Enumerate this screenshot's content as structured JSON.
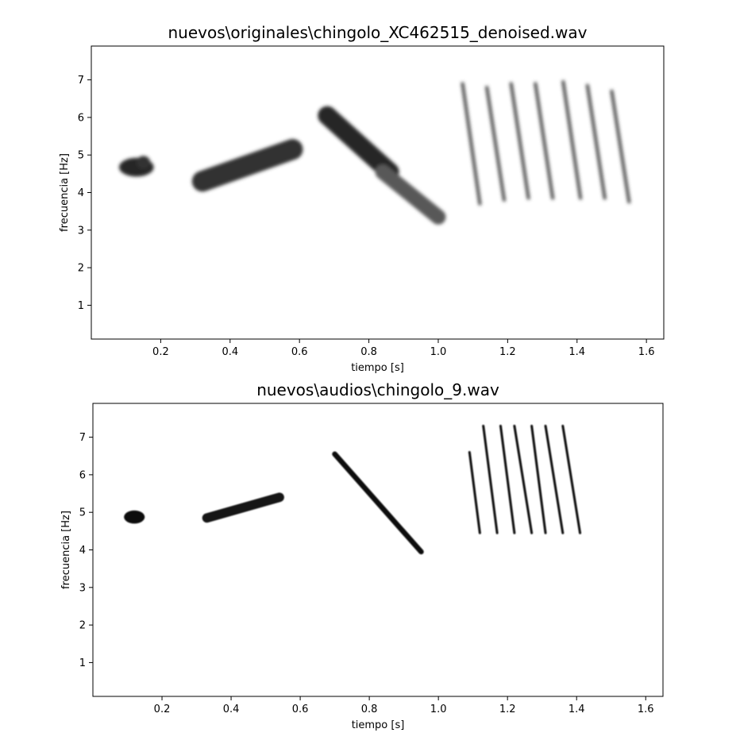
{
  "chart_data": [
    {
      "type": "heatmap",
      "subtype": "spectrogram",
      "title": "nuevos\\originales\\chingolo_XC462515_denoised.wav",
      "xlabel": "tiempo [s]",
      "ylabel": "frecuencia [Hz]",
      "xlim": [
        0.0,
        1.65
      ],
      "ylim": [
        0.1,
        7.9
      ],
      "x_ticks": [
        "0.2",
        "0.4",
        "0.6",
        "0.8",
        "1.0",
        "1.2",
        "1.4",
        "1.6"
      ],
      "y_ticks": [
        "1",
        "2",
        "3",
        "4",
        "5",
        "6",
        "7"
      ],
      "colormap": "gray_r",
      "grid": false,
      "elements": [
        {
          "kind": "blob",
          "t0": 0.08,
          "t1": 0.18,
          "f0": 4.65,
          "f1": 4.7,
          "thickness": 0.5,
          "intensity": 0.85
        },
        {
          "kind": "blob",
          "t0": 0.13,
          "t1": 0.17,
          "f0": 4.85,
          "f1": 4.75,
          "thickness": 0.35,
          "intensity": 0.8
        },
        {
          "kind": "sweep",
          "t0": 0.32,
          "t1": 0.58,
          "f0": 4.3,
          "f1": 5.15,
          "thickness": 0.55,
          "intensity": 0.8
        },
        {
          "kind": "sweep",
          "t0": 0.68,
          "t1": 0.86,
          "f0": 6.05,
          "f1": 4.55,
          "thickness": 0.5,
          "intensity": 0.85
        },
        {
          "kind": "sweep",
          "t0": 0.84,
          "t1": 1.0,
          "f0": 4.55,
          "f1": 3.35,
          "thickness": 0.4,
          "intensity": 0.65
        },
        {
          "kind": "note",
          "t0": 1.07,
          "t1": 1.12,
          "f0": 6.9,
          "f1": 3.7,
          "thickness": 0.08,
          "intensity": 0.75
        },
        {
          "kind": "note",
          "t0": 1.14,
          "t1": 1.19,
          "f0": 6.8,
          "f1": 3.8,
          "thickness": 0.08,
          "intensity": 0.75
        },
        {
          "kind": "note",
          "t0": 1.21,
          "t1": 1.26,
          "f0": 6.9,
          "f1": 3.85,
          "thickness": 0.08,
          "intensity": 0.75
        },
        {
          "kind": "note",
          "t0": 1.28,
          "t1": 1.33,
          "f0": 6.9,
          "f1": 3.85,
          "thickness": 0.08,
          "intensity": 0.75
        },
        {
          "kind": "note",
          "t0": 1.36,
          "t1": 1.41,
          "f0": 6.95,
          "f1": 3.85,
          "thickness": 0.08,
          "intensity": 0.75
        },
        {
          "kind": "note",
          "t0": 1.43,
          "t1": 1.48,
          "f0": 6.85,
          "f1": 3.85,
          "thickness": 0.08,
          "intensity": 0.75
        },
        {
          "kind": "note",
          "t0": 1.5,
          "t1": 1.55,
          "f0": 6.7,
          "f1": 3.75,
          "thickness": 0.08,
          "intensity": 0.75
        }
      ]
    },
    {
      "type": "heatmap",
      "subtype": "spectrogram",
      "title": "nuevos\\audios\\chingolo_9.wav",
      "xlabel": "tiempo [s]",
      "ylabel": "frecuencia [Hz]",
      "xlim": [
        0.0,
        1.65
      ],
      "ylim": [
        0.1,
        7.9
      ],
      "x_ticks": [
        "0.2",
        "0.4",
        "0.6",
        "0.8",
        "1.0",
        "1.2",
        "1.4",
        "1.6"
      ],
      "y_ticks": [
        "1",
        "2",
        "3",
        "4",
        "5",
        "6",
        "7"
      ],
      "colormap": "gray_r",
      "grid": false,
      "elements": [
        {
          "kind": "blob",
          "t0": 0.09,
          "t1": 0.15,
          "f0": 4.85,
          "f1": 4.9,
          "thickness": 0.35,
          "intensity": 0.95
        },
        {
          "kind": "sweep",
          "t0": 0.33,
          "t1": 0.54,
          "f0": 4.85,
          "f1": 5.4,
          "thickness": 0.25,
          "intensity": 0.9
        },
        {
          "kind": "sweep",
          "t0": 0.7,
          "t1": 0.95,
          "f0": 6.55,
          "f1": 3.95,
          "thickness": 0.14,
          "intensity": 0.95
        },
        {
          "kind": "note",
          "t0": 1.09,
          "t1": 1.12,
          "f0": 6.6,
          "f1": 4.45,
          "thickness": 0.05,
          "intensity": 0.95
        },
        {
          "kind": "note",
          "t0": 1.13,
          "t1": 1.17,
          "f0": 7.3,
          "f1": 4.45,
          "thickness": 0.05,
          "intensity": 0.95
        },
        {
          "kind": "note",
          "t0": 1.18,
          "t1": 1.22,
          "f0": 7.3,
          "f1": 4.45,
          "thickness": 0.05,
          "intensity": 0.95
        },
        {
          "kind": "note",
          "t0": 1.22,
          "t1": 1.27,
          "f0": 7.3,
          "f1": 4.45,
          "thickness": 0.05,
          "intensity": 0.95
        },
        {
          "kind": "note",
          "t0": 1.27,
          "t1": 1.31,
          "f0": 7.3,
          "f1": 4.45,
          "thickness": 0.05,
          "intensity": 0.95
        },
        {
          "kind": "note",
          "t0": 1.31,
          "t1": 1.36,
          "f0": 7.3,
          "f1": 4.45,
          "thickness": 0.05,
          "intensity": 0.95
        },
        {
          "kind": "note",
          "t0": 1.36,
          "t1": 1.41,
          "f0": 7.3,
          "f1": 4.45,
          "thickness": 0.05,
          "intensity": 0.95
        }
      ]
    }
  ]
}
